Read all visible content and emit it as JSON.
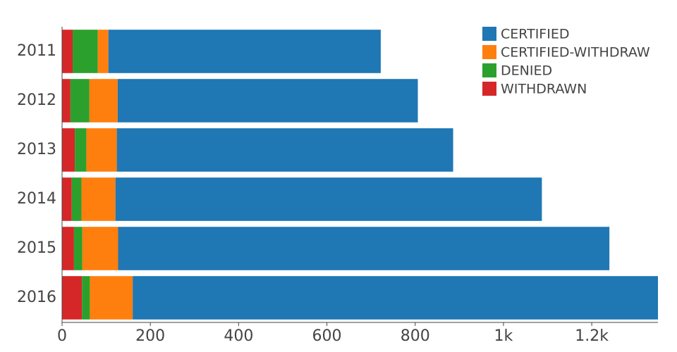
{
  "chart_data": {
    "type": "stacked-bar-horizontal",
    "categories": [
      "2011",
      "2012",
      "2013",
      "2014",
      "2015",
      "2016"
    ],
    "series": [
      {
        "name": "WITHDRAWN",
        "color": "#d62728",
        "values": [
          24,
          19,
          29,
          22,
          27,
          45
        ]
      },
      {
        "name": "DENIED",
        "color": "#2ca02c",
        "values": [
          57,
          43,
          26,
          22,
          19,
          18
        ]
      },
      {
        "name": "CERTIFIED-WITHDRAW",
        "color": "#ff7f0e",
        "values": [
          24,
          64,
          69,
          77,
          81,
          97
        ]
      },
      {
        "name": "CERTIFIED",
        "color": "#1f77b4",
        "values": [
          617,
          680,
          762,
          966,
          1113,
          1190
        ]
      }
    ],
    "legend_order": [
      "CERTIFIED",
      "CERTIFIED-WITHDRAW",
      "DENIED",
      "WITHDRAWN"
    ],
    "legend_position": "top-right",
    "xlim": [
      0,
      1350
    ],
    "xticks": [
      0,
      200,
      400,
      600,
      800,
      {
        "value": 1000,
        "label": "1k"
      },
      {
        "value": 1200,
        "label": "1.2k"
      }
    ]
  }
}
